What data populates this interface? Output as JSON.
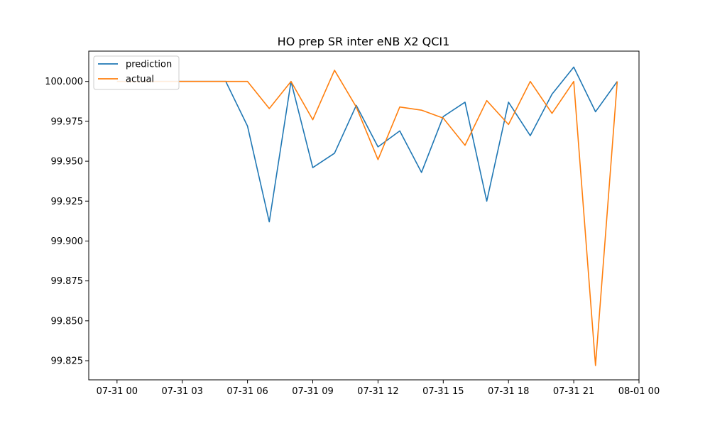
{
  "chart_data": {
    "type": "line",
    "title": "HO prep SR inter eNB X2 QCI1",
    "xlabel": "",
    "ylabel": "",
    "x": [
      "07-31 00:00",
      "07-31 01:00",
      "07-31 02:00",
      "07-31 03:00",
      "07-31 04:00",
      "07-31 05:00",
      "07-31 06:00",
      "07-31 07:00",
      "07-31 08:00",
      "07-31 09:00",
      "07-31 10:00",
      "07-31 11:00",
      "07-31 12:00",
      "07-31 13:00",
      "07-31 14:00",
      "07-31 15:00",
      "07-31 16:00",
      "07-31 17:00",
      "07-31 18:00",
      "07-31 19:00",
      "07-31 20:00",
      "07-31 21:00",
      "07-31 22:00",
      "07-31 23:00"
    ],
    "xlim": [
      -1.3,
      24.0
    ],
    "ylim": [
      99.813,
      100.019
    ],
    "xticks": [
      {
        "pos": 0,
        "label": "07-31 00"
      },
      {
        "pos": 3,
        "label": "07-31 03"
      },
      {
        "pos": 6,
        "label": "07-31 06"
      },
      {
        "pos": 9,
        "label": "07-31 09"
      },
      {
        "pos": 12,
        "label": "07-31 12"
      },
      {
        "pos": 15,
        "label": "07-31 15"
      },
      {
        "pos": 18,
        "label": "07-31 18"
      },
      {
        "pos": 21,
        "label": "07-31 21"
      },
      {
        "pos": 24,
        "label": "08-01 00"
      }
    ],
    "yticks": [
      {
        "value": 100.0,
        "label": "100.000"
      },
      {
        "value": 99.975,
        "label": "99.975"
      },
      {
        "value": 99.95,
        "label": "99.950"
      },
      {
        "value": 99.925,
        "label": "99.925"
      },
      {
        "value": 99.9,
        "label": "99.900"
      },
      {
        "value": 99.875,
        "label": "99.875"
      },
      {
        "value": 99.85,
        "label": "99.850"
      },
      {
        "value": 99.825,
        "label": "99.825"
      }
    ],
    "series": [
      {
        "name": "prediction",
        "color": "#1f77b4",
        "values": [
          100.0,
          100.0,
          100.0,
          100.0,
          100.0,
          100.0,
          99.972,
          99.912,
          100.0,
          99.946,
          99.955,
          99.985,
          99.959,
          99.969,
          99.943,
          99.978,
          99.987,
          99.925,
          99.987,
          99.966,
          99.992,
          100.009,
          99.981,
          100.0
        ]
      },
      {
        "name": "actual",
        "color": "#ff7f0e",
        "values": [
          100.0,
          100.0,
          100.0,
          100.0,
          100.0,
          100.0,
          100.0,
          99.983,
          100.0,
          99.976,
          100.007,
          99.984,
          99.951,
          99.984,
          99.982,
          99.977,
          99.96,
          99.988,
          99.973,
          100.0,
          99.98,
          100.0,
          99.822,
          100.0
        ]
      }
    ],
    "legend_position": "top-left",
    "grid": false
  }
}
